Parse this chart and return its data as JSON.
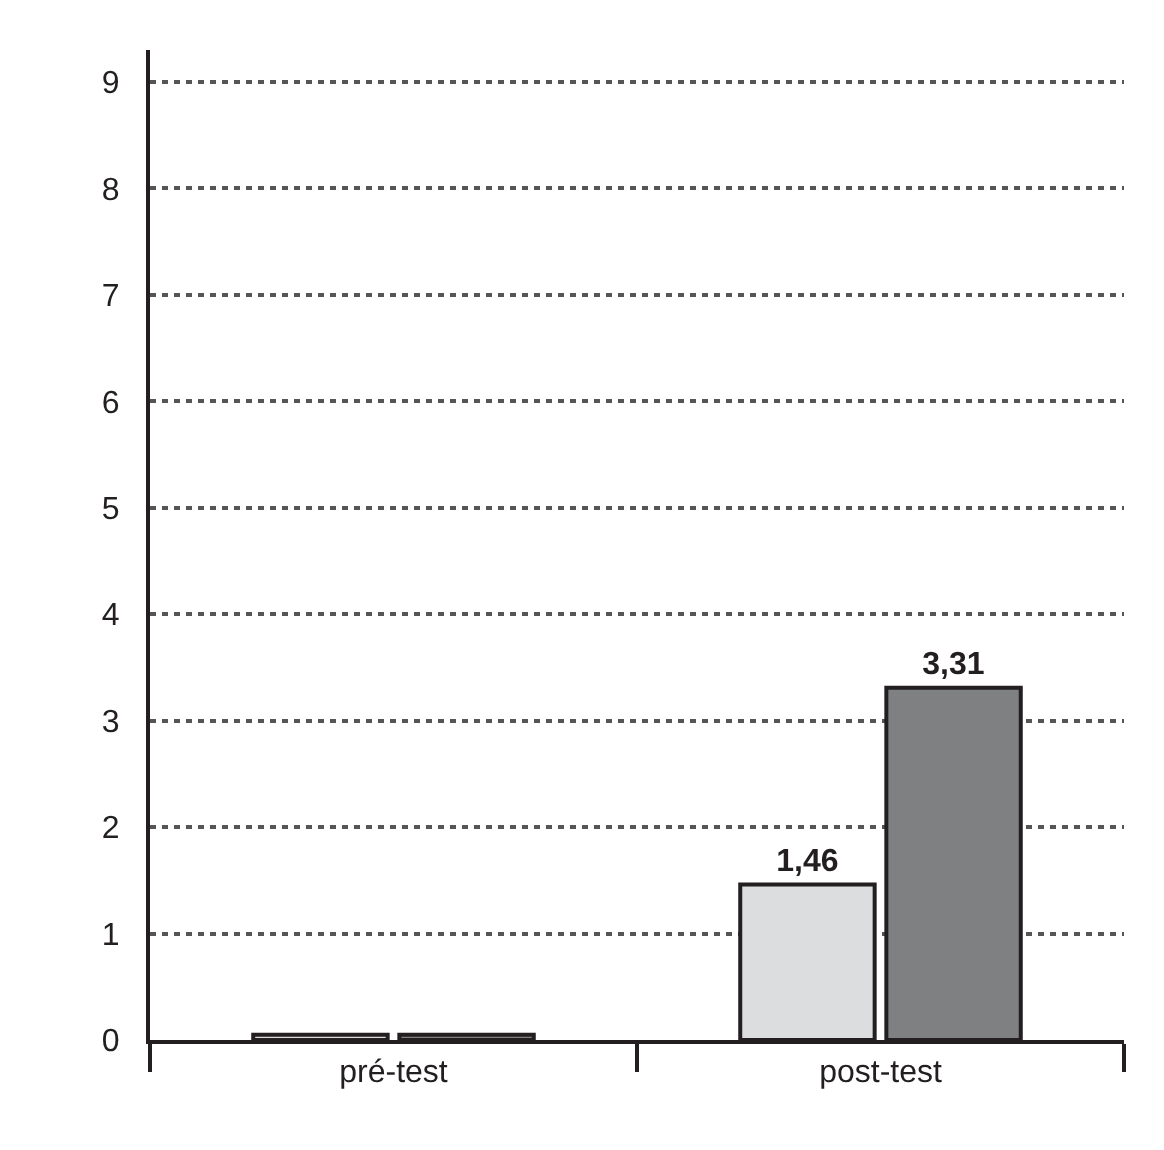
{
  "chart_data": {
    "type": "bar",
    "categories": [
      "pré-test",
      "post-test"
    ],
    "series": [
      {
        "color": "#dcdddf",
        "values": [
          0.05,
          1.46
        ],
        "value_labels": [
          null,
          "1,46"
        ]
      },
      {
        "color": "#7f8082",
        "values": [
          0.05,
          3.31
        ],
        "value_labels": [
          null,
          "3,31"
        ]
      }
    ],
    "ylim": [
      0,
      9.3
    ],
    "yticks": [
      0,
      1,
      2,
      3,
      4,
      5,
      6,
      7,
      8,
      9
    ],
    "grid": "y",
    "legend": false
  }
}
